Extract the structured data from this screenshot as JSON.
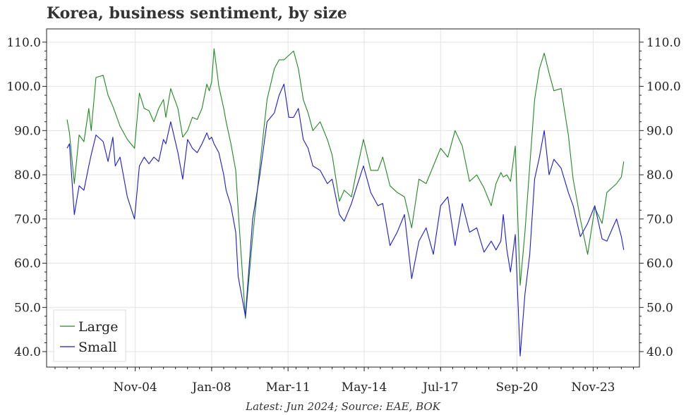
{
  "chart_data": {
    "type": "line",
    "title": "Korea, business sentiment, by size",
    "caption": "Latest: Jun 2024; Source: EAE, BOK",
    "xlabel": "",
    "ylabel": "",
    "ylim": [
      36.5,
      113
    ],
    "yticks": [
      40.0,
      50.0,
      60.0,
      70.0,
      80.0,
      90.0,
      100.0,
      110.0
    ],
    "ytick_labels": [
      "40.0",
      "50.0",
      "60.0",
      "70.0",
      "80.0",
      "90.0",
      "100.0",
      "110.0"
    ],
    "xlim": [
      2001.15,
      2025.75
    ],
    "xticks": [
      2004.83,
      2008.0,
      2011.17,
      2014.33,
      2017.5,
      2020.67,
      2023.83
    ],
    "xtick_labels": [
      "Nov-04",
      "Jan-08",
      "Mar-11",
      "May-14",
      "Jul-17",
      "Sep-20",
      "Nov-23"
    ],
    "grid": true,
    "legend_position": "bottom-left",
    "series": [
      {
        "name": "Large",
        "color": "#1f8a1f",
        "x": [
          2002.0,
          2002.1,
          2002.3,
          2002.5,
          2002.7,
          2002.9,
          2003.0,
          2003.2,
          2003.5,
          2003.7,
          2003.9,
          2004.0,
          2004.2,
          2004.5,
          2004.8,
          2005.0,
          2005.2,
          2005.4,
          2005.6,
          2005.8,
          2006.0,
          2006.1,
          2006.3,
          2006.6,
          2006.8,
          2007.0,
          2007.2,
          2007.4,
          2007.6,
          2007.8,
          2007.9,
          2008.0,
          2008.1,
          2008.3,
          2008.5,
          2008.6,
          2008.8,
          2009.0,
          2009.1,
          2009.4,
          2009.7,
          2010.0,
          2010.3,
          2010.6,
          2010.8,
          2011.0,
          2011.2,
          2011.4,
          2011.6,
          2011.8,
          2012.0,
          2012.2,
          2012.5,
          2012.8,
          2013.0,
          2013.3,
          2013.5,
          2013.8,
          2014.0,
          2014.3,
          2014.6,
          2014.9,
          2015.1,
          2015.4,
          2015.7,
          2016.0,
          2016.3,
          2016.6,
          2016.9,
          2017.2,
          2017.5,
          2017.8,
          2018.1,
          2018.4,
          2018.7,
          2019.0,
          2019.3,
          2019.6,
          2019.8,
          2020.0,
          2020.1,
          2020.25,
          2020.4,
          2020.6,
          2020.8,
          2021.0,
          2021.2,
          2021.4,
          2021.6,
          2021.8,
          2022.0,
          2022.2,
          2022.5,
          2022.8,
          2023.0,
          2023.3,
          2023.6,
          2023.9,
          2024.2,
          2024.4
        ],
        "values": [
          92.5,
          89.5,
          78.0,
          89.0,
          87.5,
          95.0,
          90.0,
          102.0,
          102.5,
          98.0,
          95.5,
          94.0,
          91.0,
          88.0,
          86.0,
          98.5,
          95.0,
          94.5,
          92.0,
          95.0,
          97.0,
          93.0,
          99.5,
          95.0,
          88.5,
          90.0,
          93.0,
          92.5,
          95.0,
          100.5,
          99.0,
          101.0,
          108.5,
          100.0,
          95.0,
          92.0,
          87.0,
          81.0,
          72.0,
          47.5,
          66.0,
          82.0,
          97.0,
          104.0,
          106.0,
          106.0,
          107.0,
          108.0,
          104.0,
          97.0,
          94.0,
          90.0,
          92.0,
          88.0,
          84.5,
          74.0,
          76.5,
          75.0,
          80.5,
          88.0,
          81.0,
          81.0,
          84.0,
          77.5,
          76.0,
          75.0,
          68.0,
          79.0,
          78.0,
          82.0,
          86.0,
          84.0,
          90.0,
          86.5,
          78.5,
          80.0,
          77.0,
          73.0,
          78.0,
          80.5,
          79.5,
          80.0,
          78.5,
          86.5,
          55.0,
          67.0,
          82.0,
          97.0,
          104.0,
          107.5,
          103.0,
          99.0,
          99.5,
          89.0,
          79.0,
          70.0,
          62.0,
          72.5,
          69.0,
          76.0
        ],
        "xcont": [
          2024.4,
          2024.6,
          2024.8,
          2025.0,
          2025.1
        ],
        "vcont": [
          76.0,
          77.0,
          78.0,
          79.5,
          83.0
        ]
      },
      {
        "name": "Small",
        "color": "#1a1ad4",
        "x": [
          2002.0,
          2002.1,
          2002.3,
          2002.5,
          2002.7,
          2002.9,
          2003.0,
          2003.2,
          2003.5,
          2003.7,
          2003.9,
          2004.0,
          2004.2,
          2004.5,
          2004.8,
          2005.0,
          2005.2,
          2005.4,
          2005.6,
          2005.8,
          2006.0,
          2006.1,
          2006.3,
          2006.6,
          2006.8,
          2007.0,
          2007.2,
          2007.4,
          2007.6,
          2007.8,
          2007.9,
          2008.0,
          2008.1,
          2008.3,
          2008.5,
          2008.6,
          2008.8,
          2009.0,
          2009.1,
          2009.4,
          2009.7,
          2010.0,
          2010.3,
          2010.6,
          2010.8,
          2011.0,
          2011.2,
          2011.4,
          2011.6,
          2011.8,
          2012.0,
          2012.2,
          2012.5,
          2012.8,
          2013.0,
          2013.3,
          2013.5,
          2013.8,
          2014.0,
          2014.3,
          2014.6,
          2014.9,
          2015.1,
          2015.4,
          2015.7,
          2016.0,
          2016.3,
          2016.6,
          2016.9,
          2017.2,
          2017.5,
          2017.8,
          2018.1,
          2018.4,
          2018.7,
          2019.0,
          2019.3,
          2019.6,
          2019.8,
          2020.0,
          2020.1,
          2020.25,
          2020.4,
          2020.6,
          2020.8,
          2021.0,
          2021.2,
          2021.4,
          2021.6,
          2021.8,
          2022.0,
          2022.2,
          2022.5,
          2022.8,
          2023.0,
          2023.3,
          2023.6,
          2023.9,
          2024.2,
          2024.4
        ],
        "values": [
          86.0,
          87.0,
          71.0,
          77.5,
          76.5,
          82.0,
          84.5,
          89.0,
          87.5,
          83.0,
          88.5,
          82.0,
          84.0,
          75.0,
          70.0,
          82.0,
          84.0,
          82.5,
          84.0,
          83.0,
          88.0,
          87.0,
          92.0,
          85.0,
          79.0,
          88.0,
          86.0,
          85.0,
          87.0,
          89.5,
          88.0,
          88.5,
          87.0,
          85.0,
          80.0,
          76.5,
          73.0,
          67.0,
          57.0,
          48.0,
          70.0,
          80.0,
          92.0,
          94.0,
          98.0,
          100.5,
          93.0,
          93.0,
          95.0,
          88.0,
          86.0,
          82.0,
          81.0,
          78.0,
          79.0,
          71.0,
          69.5,
          73.5,
          77.0,
          82.0,
          76.0,
          73.0,
          73.5,
          64.0,
          67.0,
          71.0,
          56.5,
          65.0,
          68.0,
          62.0,
          73.0,
          75.0,
          64.0,
          73.5,
          67.0,
          68.0,
          62.5,
          65.0,
          63.0,
          65.0,
          71.0,
          63.0,
          58.0,
          66.5,
          39.0,
          53.0,
          62.0,
          79.0,
          84.0,
          90.0,
          80.0,
          83.5,
          81.5,
          76.0,
          73.0,
          66.0,
          69.0,
          73.0,
          65.5,
          65.0
        ],
        "xcont": [
          2024.4,
          2024.6,
          2024.8,
          2025.0,
          2025.1
        ],
        "vcont": [
          65.0,
          67.5,
          70.0,
          66.0,
          63.0
        ]
      }
    ]
  }
}
